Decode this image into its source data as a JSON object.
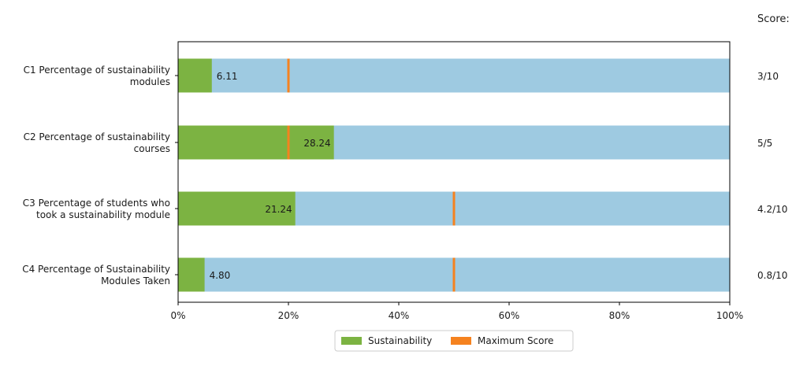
{
  "chart_data": {
    "type": "bar",
    "orientation": "horizontal",
    "stacked_background": true,
    "title": "",
    "xlabel": "",
    "ylabel": "",
    "xlim": [
      0,
      100
    ],
    "x_tick_values": [
      0,
      20,
      40,
      60,
      80,
      100
    ],
    "x_tick_labels": [
      "0%",
      "20%",
      "40%",
      "60%",
      "80%",
      "100%"
    ],
    "score_header": "Score:",
    "categories": [
      {
        "label_lines": [
          "C1 Percentage of sustainability",
          "modules"
        ],
        "value": 6.11,
        "value_label": "6.11",
        "max_score_marker": 20,
        "score": "3/10"
      },
      {
        "label_lines": [
          "C2 Percentage of sustainability",
          "courses"
        ],
        "value": 28.24,
        "value_label": "28.24",
        "max_score_marker": 20,
        "score": "5/5"
      },
      {
        "label_lines": [
          "C3 Percentage of students who",
          "took a sustainability module"
        ],
        "value": 21.24,
        "value_label": "21.24",
        "max_score_marker": 50,
        "score": "4.2/10"
      },
      {
        "label_lines": [
          "C4 Percentage of Sustainability",
          "Modules Taken"
        ],
        "value": 4.8,
        "value_label": "4.80",
        "max_score_marker": 50,
        "score": "0.8/10"
      }
    ],
    "legend": {
      "placement": "bottom-center",
      "entries": [
        {
          "name": "Sustainability",
          "color": "#7cb342"
        },
        {
          "name": "Maximum Score",
          "color": "#f5821f"
        }
      ]
    },
    "colors": {
      "value_bar": "#7cb342",
      "background_bar": "#9ecae1",
      "marker": "#f5821f",
      "axis": "#000000"
    },
    "grid": false
  }
}
